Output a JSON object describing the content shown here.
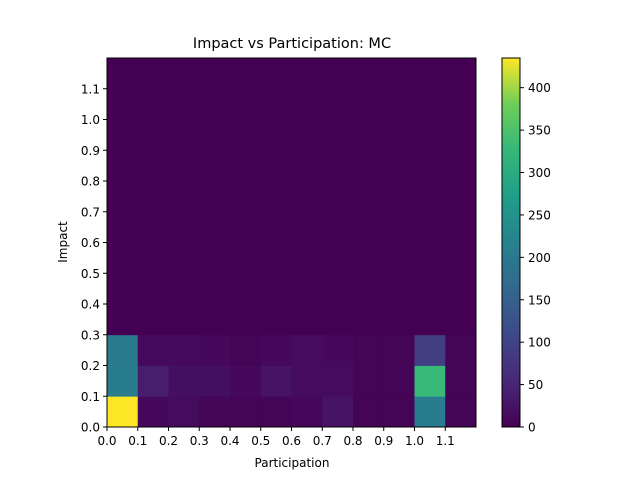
{
  "chart_data": {
    "type": "heatmap",
    "title": "Impact vs Participation: MC",
    "xlabel": "Participation",
    "ylabel": "Impact",
    "x_ticks": [
      "0.0",
      "0.1",
      "0.2",
      "0.3",
      "0.4",
      "0.5",
      "0.6",
      "0.7",
      "0.8",
      "0.9",
      "1.0",
      "1.1"
    ],
    "y_ticks": [
      "0.0",
      "0.1",
      "0.2",
      "0.3",
      "0.4",
      "0.5",
      "0.6",
      "0.7",
      "0.8",
      "0.9",
      "1.0",
      "1.1"
    ],
    "x_bin_edges": [
      0.0,
      0.1,
      0.2,
      0.3,
      0.4,
      0.5,
      0.6,
      0.7,
      0.8,
      0.9,
      1.0,
      1.1,
      1.2
    ],
    "y_bin_edges": [
      0.0,
      0.1,
      0.2,
      0.3,
      0.4,
      0.5,
      0.6,
      0.7,
      0.8,
      0.9,
      1.0,
      1.1,
      1.2
    ],
    "xlim": [
      0.0,
      1.2
    ],
    "ylim": [
      0.0,
      1.2
    ],
    "colormap": "viridis",
    "colorbar": {
      "min": 0,
      "max": 435,
      "ticks": [
        "0",
        "50",
        "100",
        "150",
        "200",
        "250",
        "300",
        "350",
        "400"
      ]
    },
    "counts_rows_bottom_to_top": [
      [
        435,
        10,
        15,
        5,
        5,
        5,
        8,
        25,
        5,
        5,
        205,
        5
      ],
      [
        205,
        40,
        20,
        20,
        10,
        25,
        15,
        15,
        5,
        5,
        330,
        5
      ],
      [
        200,
        12,
        12,
        10,
        5,
        10,
        15,
        10,
        5,
        5,
        90,
        5
      ],
      [
        0,
        0,
        0,
        0,
        0,
        0,
        0,
        0,
        0,
        0,
        0,
        0
      ],
      [
        0,
        0,
        0,
        0,
        0,
        0,
        0,
        0,
        0,
        0,
        0,
        0
      ],
      [
        0,
        0,
        0,
        0,
        0,
        0,
        0,
        0,
        0,
        0,
        0,
        0
      ],
      [
        0,
        0,
        0,
        0,
        0,
        0,
        0,
        0,
        0,
        0,
        0,
        0
      ],
      [
        0,
        0,
        0,
        0,
        0,
        0,
        0,
        0,
        0,
        0,
        0,
        0
      ],
      [
        0,
        0,
        0,
        0,
        0,
        0,
        0,
        0,
        0,
        0,
        0,
        0
      ],
      [
        0,
        0,
        0,
        0,
        0,
        0,
        0,
        0,
        0,
        0,
        0,
        0
      ],
      [
        0,
        0,
        0,
        0,
        0,
        0,
        0,
        0,
        0,
        0,
        0,
        0
      ],
      [
        0,
        0,
        0,
        0,
        0,
        0,
        0,
        0,
        0,
        0,
        0,
        0
      ]
    ]
  }
}
